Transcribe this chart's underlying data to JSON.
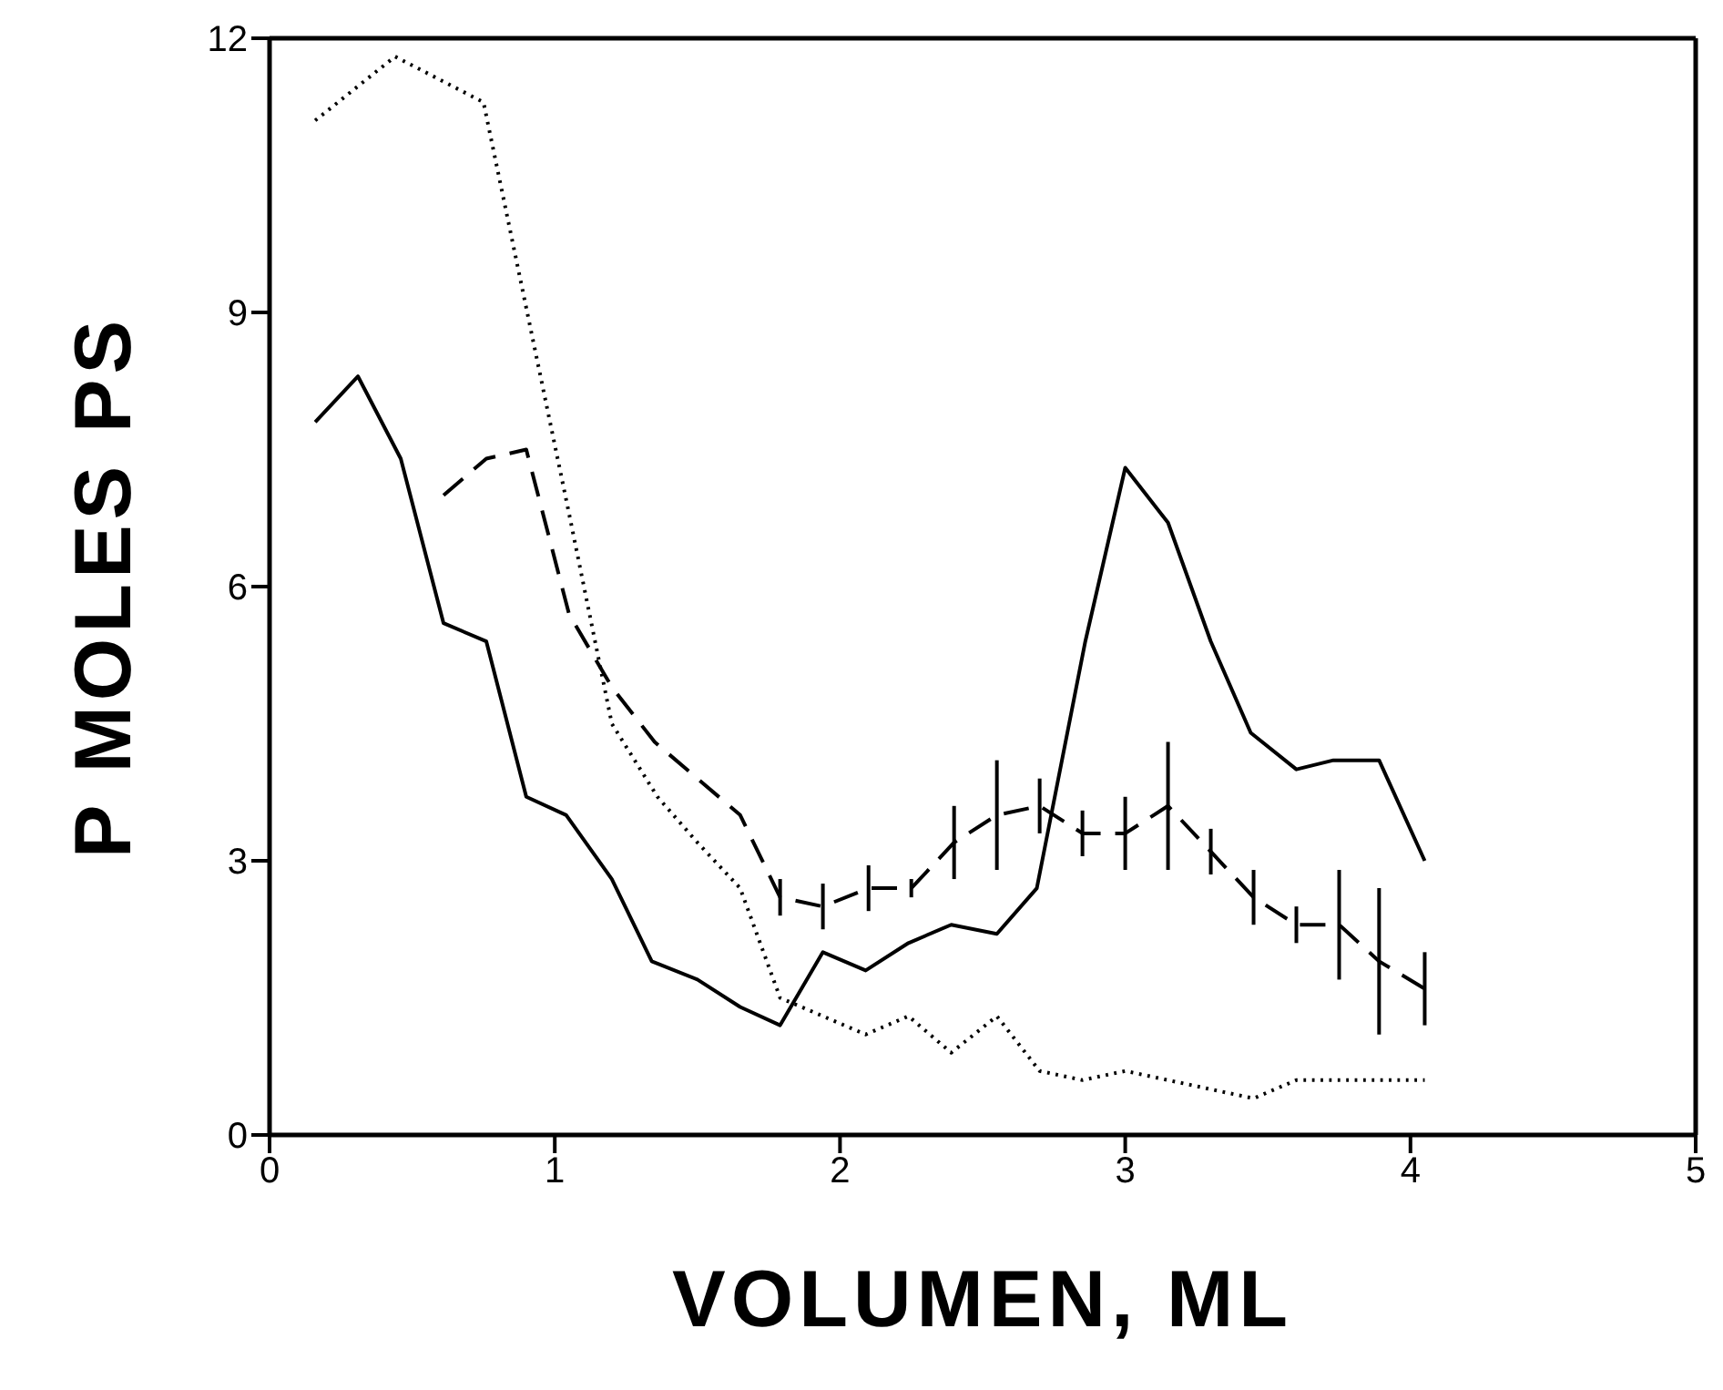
{
  "chart_data": {
    "type": "line",
    "xlabel": "VOLUMEN, ML",
    "ylabel": "P MOLES PS",
    "xlim": [
      0,
      5
    ],
    "xticks": [
      0,
      1,
      2,
      3,
      4,
      5
    ],
    "ylim": [
      0,
      12
    ],
    "yticks": [
      0,
      3,
      6,
      9,
      12
    ],
    "grid": false,
    "marker": "none",
    "series": [
      {
        "color": "#000000",
        "line_style": "solid",
        "x": [
          0.16,
          0.31,
          0.46,
          0.61,
          0.76,
          0.9,
          1.04,
          1.2,
          1.34,
          1.5,
          1.65,
          1.79,
          1.94,
          2.09,
          2.24,
          2.39,
          2.55,
          2.69,
          2.86,
          3.0,
          3.15,
          3.3,
          3.44,
          3.6,
          3.73,
          3.89,
          4.05
        ],
        "values": [
          7.8,
          8.3,
          7.4,
          5.6,
          5.4,
          3.7,
          3.5,
          2.8,
          1.9,
          1.7,
          1.4,
          1.2,
          2.0,
          1.8,
          2.1,
          2.3,
          2.2,
          2.7,
          5.4,
          7.3,
          6.7,
          5.4,
          4.4,
          4.0,
          4.1,
          4.1,
          3.0
        ]
      },
      {
        "color": "#000000",
        "line_style": "dotted",
        "x": [
          0.16,
          0.44,
          0.75,
          0.91,
          1.05,
          1.2,
          1.36,
          1.5,
          1.65,
          1.79,
          1.94,
          2.09,
          2.24,
          2.39,
          2.55,
          2.7,
          2.85,
          3.0,
          3.15,
          3.45,
          3.6,
          4.05
        ],
        "values": [
          11.1,
          11.8,
          11.3,
          8.9,
          6.8,
          4.5,
          3.7,
          3.2,
          2.7,
          1.5,
          1.3,
          1.1,
          1.3,
          0.9,
          1.3,
          0.7,
          0.6,
          0.7,
          0.6,
          0.4,
          0.6,
          0.6
        ]
      },
      {
        "color": "#000000",
        "line_style": "dashed",
        "x": [
          0.61,
          0.76,
          0.9,
          1.05,
          1.2,
          1.35,
          1.5,
          1.65,
          1.79,
          1.94,
          2.1,
          2.25,
          2.4,
          2.55,
          2.7,
          2.85,
          3.0,
          3.15,
          3.3,
          3.45,
          3.6,
          3.75,
          3.89,
          4.05
        ],
        "values": [
          7.0,
          7.4,
          7.5,
          5.7,
          4.9,
          4.3,
          3.9,
          3.5,
          2.6,
          2.5,
          2.7,
          2.7,
          3.2,
          3.5,
          3.6,
          3.3,
          3.3,
          3.6,
          3.1,
          2.6,
          2.3,
          2.3,
          1.9,
          1.6
        ],
        "errors": [
          null,
          null,
          null,
          null,
          null,
          null,
          null,
          null,
          0.2,
          0.25,
          0.25,
          0.1,
          0.4,
          0.6,
          0.3,
          0.25,
          0.4,
          0.7,
          0.25,
          0.3,
          0.2,
          0.6,
          0.8,
          0.4
        ]
      }
    ]
  }
}
